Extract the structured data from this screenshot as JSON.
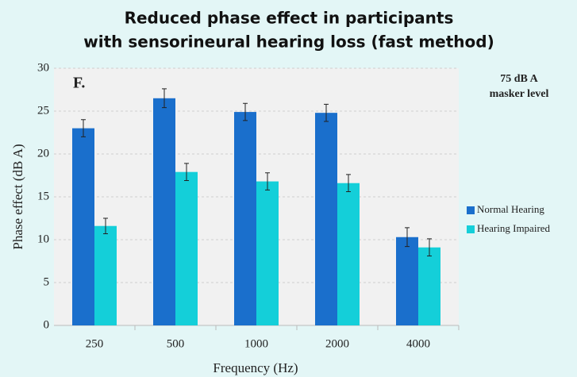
{
  "chart_data": {
    "type": "bar",
    "title": [
      "Reduced phase effect in participants",
      "with sensorineural hearing loss (fast method)"
    ],
    "x_label": "Frequency (Hz)",
    "y_label": "Phase effect (dB A)",
    "annotations": [
      "F.",
      "75 dB A",
      "masker level"
    ],
    "categories": [
      "250",
      "500",
      "1000",
      "2000",
      "4000"
    ],
    "series": [
      {
        "name": "Normal Hearing",
        "color": "#1a6fcc",
        "values": [
          23,
          26.5,
          24.9,
          24.8,
          10.3
        ],
        "errors": [
          1.0,
          1.1,
          1.0,
          1.0,
          1.1
        ]
      },
      {
        "name": "Hearing Impaired",
        "color": "#14cfd9",
        "values": [
          11.6,
          17.9,
          16.8,
          16.6,
          9.1
        ],
        "errors": [
          0.9,
          1.0,
          1.0,
          1.0,
          1.0
        ]
      }
    ],
    "ylim": [
      0,
      30
    ],
    "yticks": [
      0,
      5,
      10,
      15,
      20,
      25,
      30
    ],
    "grid": true,
    "legend": "right"
  }
}
